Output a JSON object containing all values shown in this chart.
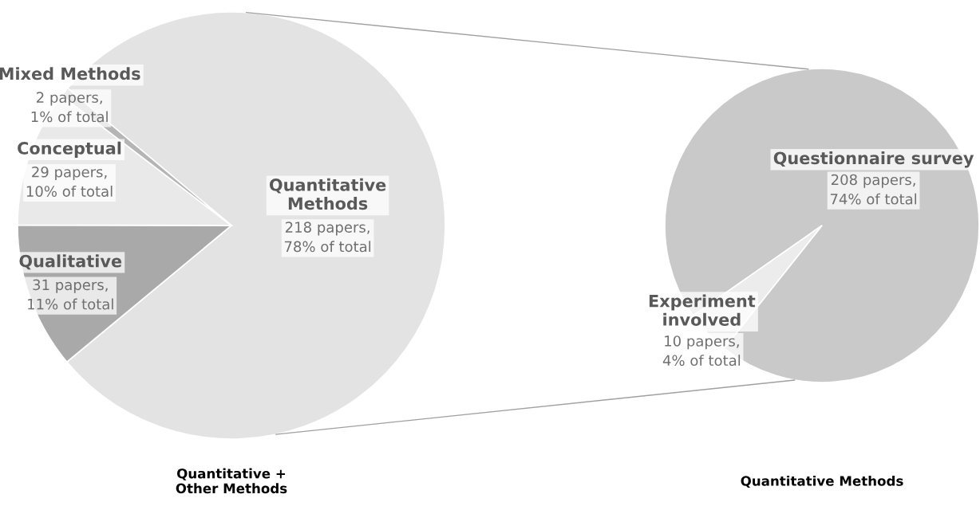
{
  "chart_data": [
    {
      "type": "pie",
      "title": "Quantitative +\nOther Methods",
      "categories": [
        "Quantitative\nMethods",
        "Qualitative",
        "Conceptual",
        "Mixed Methods"
      ],
      "values": [
        218,
        31,
        29,
        2
      ],
      "colors": [
        "#e3e3e3",
        "#a9a9a9",
        "#e9e9e9",
        "#b5b5b5"
      ],
      "value_labels": [
        "218 papers, 78% of total",
        "31 papers, 11% of total",
        "29 papers, 10% of total",
        "2 papers, 1% of total"
      ]
    },
    {
      "type": "pie",
      "title": "Quantitative Methods",
      "categories": [
        "Questionnaire survey",
        "Experiment\ninvolved"
      ],
      "values": [
        208,
        10
      ],
      "colors": [
        "#c9c9c9",
        "#ececec"
      ],
      "value_labels": [
        "208 papers, 74% of total",
        "10 papers, 4% of total"
      ]
    }
  ]
}
